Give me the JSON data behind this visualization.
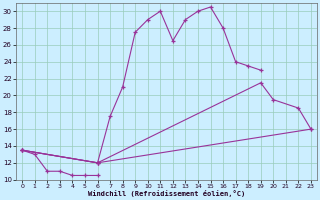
{
  "bg_color": "#cceeff",
  "line_color": "#993399",
  "grid_color": "#99ccbb",
  "xlabel": "Windchill (Refroidissement éolien,°C)",
  "xlim": [
    -0.5,
    23.5
  ],
  "ylim": [
    10,
    31
  ],
  "xticks": [
    0,
    1,
    2,
    3,
    4,
    5,
    6,
    7,
    8,
    9,
    10,
    11,
    12,
    13,
    14,
    15,
    16,
    17,
    18,
    19,
    20,
    21,
    22,
    23
  ],
  "yticks": [
    10,
    12,
    14,
    16,
    18,
    20,
    22,
    24,
    26,
    28,
    30
  ],
  "line1_x": [
    0,
    1,
    2,
    3,
    4,
    5,
    6
  ],
  "line1_y": [
    13.5,
    13.0,
    11.0,
    11.0,
    10.5,
    10.5,
    10.5
  ],
  "line2_x": [
    0,
    6,
    7,
    8,
    9,
    10,
    11,
    12,
    13,
    14,
    15,
    16,
    17,
    18,
    19
  ],
  "line2_y": [
    13.5,
    12.0,
    17.5,
    21.0,
    27.5,
    29.0,
    30.0,
    26.5,
    29.0,
    30.0,
    30.5,
    28.0,
    24.0,
    23.5,
    23.0
  ],
  "line3_x": [
    0,
    6,
    19,
    20,
    22,
    23
  ],
  "line3_y": [
    13.5,
    12.0,
    21.5,
    19.5,
    18.5,
    16.0
  ],
  "line4_x": [
    0,
    6,
    23
  ],
  "line4_y": [
    13.5,
    12.0,
    16.0
  ]
}
